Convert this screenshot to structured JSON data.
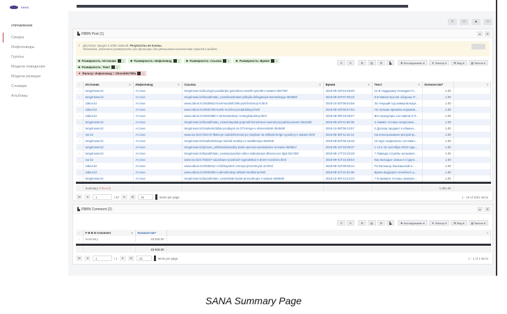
{
  "app": {
    "logo_text": "SANA"
  },
  "sidebar": {
    "heading": "УПРАВЛЕНИЕ",
    "items": [
      {
        "label": "Сводка",
        "active": true
      },
      {
        "label": "Инфоповоды"
      },
      {
        "label": "Группы"
      },
      {
        "label": "Модели поведения"
      },
      {
        "label": "Модели реакции"
      },
      {
        "label": "Словари"
      },
      {
        "label": "Альбомы"
      }
    ]
  },
  "top_buttons": [
    "+",
    "▭",
    "▲",
    "▭"
  ],
  "panel1": {
    "title": "FBBN Post (1)",
    "warning": {
      "icon": "!",
      "line1_plain": "Достигнут предел в 1000 записей.",
      "line1_bold": "Результаты не полны.",
      "line2": "Подсказка: уточните размерности или фильтры для уменьшения количества записей в выдаче."
    },
    "chips": [
      "Размерность: Источник",
      "Размерность: Инфоповод",
      "Размерность: Ссылка",
      "Размерность: Время",
      "Размерность: Текст"
    ],
    "filter_chip": "Фильтр: Инфоповод = OKzmlHG7tlRa",
    "toolbar": [
      "↺",
      "↻",
      "⚙",
      "▤",
      "⚙",
      "▙",
      "✚ Исследование ▾",
      "▼ Фильтр ▾",
      "⌘ Вид ▾",
      "▮ Панель ▾"
    ],
    "columns": [
      "Источник",
      "Инфоповод",
      "Ссылка",
      "Время",
      "Текст",
      "Количество*"
    ],
    "rows": [
      [
        "tengrinews.kz",
        "Астана",
        "tengrinews.kz/boxing/v-podderjku-golovkina-osvetili-vyisotki-v-astane-353709/",
        "2018-09-16T23:49:00",
        "12 В поддержку Геннадия Го...",
        "1.00"
      ],
      [
        "tengrinews.kz",
        "Астана",
        "tengrinews.kz/kazakhstan_news/kazahstan-pribyila-delegatsiya-tsentralnogo-352680/",
        "2018-09-04T07:00:23",
        "8 В Министерстве обороны Р...",
        "1.00"
      ],
      [
        "zakon.kz",
        "Астана",
        "www.zakon.kz/4939622-kommunalshchiki-poshli-domoy-k.html",
        "2018-10-02T06:54:56",
        "За текущий год коммунальщи...",
        "1.00"
      ],
      [
        "zakon.kz",
        "Астана",
        "www.zakon.kz/4932750-turtsii-mozhet-ponadobitsya.html",
        "2018-08-15T06:57:54",
        "Не лучшие времена пережив...",
        "1.00"
      ],
      [
        "zakon.kz",
        "Астана",
        "www.zakon.kz/4931996-v-turkestanskoy-i-mangistauskoy.html",
        "2018-08-09T15:09:07",
        "Все прокуроры составили в П...",
        "1.00"
      ],
      [
        "tengrinews.kz",
        "Астана",
        "tengrinews.kz/kazakhstan_news/otepulat-poprosil-horoshuna-navesti-poryadok-pravom-354199/",
        "2018-09-24T11:59:39",
        "3 Акимат Астаны попросили ...",
        "1.00"
      ],
      [
        "tengrinews.kz",
        "Астана",
        "tengrinews.kz/markets/dollar-prodayut-za-373-tenge-v-obmennikah-354948/",
        "2018-10-05T06:24:57",
        "0 Доллар продают в обменн...",
        "1.00"
      ],
      [
        "nur.kz",
        "Астана",
        "www.nur.kz/1750170-fiktivnye-zadolzhennost-po-zarplate-na-milliard-tenge-vyavleny-v-astane.html",
        "2018-08-30T11:42:14",
        "На использование митрой ф...",
        "1.00"
      ],
      [
        "tengrinews.kz",
        "Астана",
        "tengrinews.kz/markets/tenge-nachal-nedelyu-s-ostableniya-352818/",
        "2018-09-03T08:15:28",
        "15 Курс нацвалюты составил...",
        "1.00"
      ],
      [
        "tengrinews.kz",
        "Астана",
        "tengrinews.kz/picture_art/kazahstanskiy-balet-vpervyie-predstavlen-monako-353561/",
        "2018-09-14T10:09:37",
        "1 14 и 15 сентября 2018 года...",
        "1.00"
      ],
      [
        "tengrinews.kz",
        "Астана",
        "tengrinews.kz/kazakhstan_news/poyavilos-video-zaderjaniya-ofitsera-ser-dgd-351768/",
        "2018-08-17T10:23:28",
        "7 Офицер Службы экономич...",
        "1.00"
      ],
      [
        "nur.kz",
        "Астана",
        "www.nur.kz/1750337-nazarbaev-pozdravil-rogmalstina-s-dnem-rozdenia.html",
        "2018-09-01T10:48:54",
        "Как молодые семьи и студен...",
        "1.00"
      ],
      [
        "zakon.kz",
        "Астана",
        "www.zakon.kz/4938411-v-blizhayshee-vremya-prezentuyut-10.html",
        "2018-09-24T08:06:44",
        "По Балхашу, Балхашской и ...",
        "1.00"
      ],
      [
        "zakon.kz",
        "Астана",
        "www.zakon.kz/4932256-v-akmolinskoy-oblasti-meditsina.html",
        "2018-08-11T14:01:38",
        "Врачи ведущего лечебного у...",
        "1.00"
      ],
      [
        "tengrinews.kz",
        "Астана",
        "tengrinews.kz/kazakhstan_news/skak-budut-provodit-gaz-v-astane-356690/",
        "2018-10-30T14:24:23",
        "7 В акимате Астаны назвали ...",
        "1.00"
      ]
    ],
    "summary": {
      "label": "Summary",
      "filtered": "(Filtered)",
      "total": "1 891.00"
    },
    "pager": {
      "page": "1",
      "of": "/ 67",
      "per_page": "15",
      "per_page_label": "items per page",
      "info": "1 - 15 of 1001 items"
    }
  },
  "panel2": {
    "title": "FBBN Comment (2)",
    "columns": [
      "F B B N Comment",
      "Количество*"
    ],
    "summary_label": "Summary",
    "summary_value": "18 818.00",
    "total": "18 818.00",
    "pager": {
      "page": "1",
      "of": "/ 1",
      "per_page": "15",
      "per_page_label": "items per page",
      "info": "1 - 1 of 1 items"
    }
  },
  "caption": "SANA Summary Page"
}
